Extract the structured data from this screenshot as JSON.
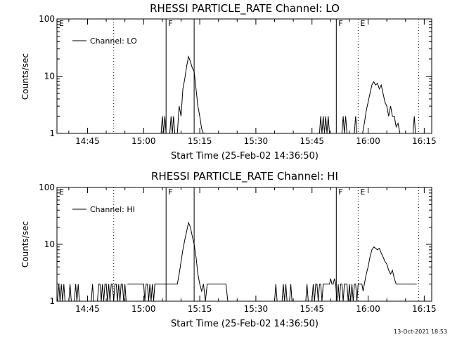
{
  "footer": {
    "timestamp": "13-Oct-2021 18:53"
  },
  "chart_data": [
    {
      "type": "line",
      "title": "RHESSI PARTICLE_RATE Channel: LO",
      "xlabel": "Start Time (25-Feb-02 14:36:50)",
      "ylabel": "Counts/sec",
      "yscale": "log",
      "xlim": [
        "14:36:50",
        "16:17:00"
      ],
      "ylim": [
        1,
        100
      ],
      "xticks": [
        "14:45",
        "15:00",
        "15:15",
        "15:30",
        "15:45",
        "16:00",
        "16:15"
      ],
      "yticks": [
        "1",
        "10",
        "100"
      ],
      "legend": {
        "position": "top-left",
        "entries": [
          "Channel: LO"
        ]
      },
      "markers": [
        {
          "time": "14:36:50",
          "label": "E",
          "style": "dotted"
        },
        {
          "time": "14:52:00",
          "label": "",
          "style": "dotted"
        },
        {
          "time": "15:06:00",
          "label": "F",
          "style": "solid"
        },
        {
          "time": "15:13:30",
          "label": "",
          "style": "solid"
        },
        {
          "time": "15:51:30",
          "label": "F",
          "style": "solid"
        },
        {
          "time": "15:57:20",
          "label": "E",
          "style": "dotted"
        },
        {
          "time": "16:13:30",
          "label": "",
          "style": "dotted"
        }
      ],
      "series": [
        {
          "name": "Channel: LO",
          "segments": [
            {
              "x": [
                "15:04:40",
                "15:05:00",
                "15:05:20",
                "15:05:40",
                "15:06:00"
              ],
              "y": [
                1,
                2,
                1,
                2,
                1
              ]
            },
            {
              "x": [
                "15:07:00",
                "15:07:20",
                "15:07:40",
                "15:08:00",
                "15:08:20"
              ],
              "y": [
                1,
                2,
                1,
                2,
                1
              ]
            },
            {
              "x": [
                "15:09:00",
                "15:09:30",
                "15:10:00",
                "15:10:30",
                "15:11:00",
                "15:11:30",
                "15:12:00",
                "15:12:30",
                "15:13:00",
                "15:13:30",
                "15:14:00",
                "15:14:30",
                "15:15:00",
                "15:15:30",
                "15:16:00"
              ],
              "y": [
                1,
                3,
                2,
                6,
                9,
                15,
                22,
                18,
                14,
                12,
                6,
                3,
                2,
                1.2,
                1
              ]
            },
            {
              "x": [
                "15:47:00",
                "15:47:20",
                "15:47:40",
                "15:48:00",
                "15:48:20",
                "15:48:40",
                "15:49:00",
                "15:49:20",
                "15:49:40"
              ],
              "y": [
                1,
                2,
                1,
                2,
                1,
                2,
                1,
                2,
                1
              ]
            },
            {
              "x": [
                "15:53:00",
                "15:53:20",
                "15:53:40",
                "15:54:00",
                "15:54:20"
              ],
              "y": [
                1,
                2,
                1,
                2,
                1
              ]
            },
            {
              "x": [
                "15:56:20",
                "15:56:40",
                "15:57:00"
              ],
              "y": [
                1,
                2,
                1
              ]
            },
            {
              "x": [
                "15:58:30",
                "15:59:00",
                "15:59:30",
                "16:00:00",
                "16:00:30",
                "16:01:00",
                "16:01:30",
                "16:02:00",
                "16:02:30",
                "16:03:00",
                "16:03:30",
                "16:04:00",
                "16:04:30",
                "16:05:00",
                "16:05:30",
                "16:06:00",
                "16:06:30",
                "16:07:00",
                "16:07:30",
                "16:08:00",
                "16:08:30"
              ],
              "y": [
                1,
                1.5,
                2.5,
                3.5,
                5,
                7,
                8,
                7,
                7.5,
                6,
                7,
                5,
                3.5,
                3,
                2,
                3,
                2,
                2,
                1.3,
                1.5,
                1
              ]
            },
            {
              "x": [
                "16:12:00",
                "16:12:20",
                "16:12:40"
              ],
              "y": [
                1,
                2,
                1
              ]
            }
          ]
        }
      ]
    },
    {
      "type": "line",
      "title": "RHESSI PARTICLE_RATE Channel: HI",
      "xlabel": "Start Time (25-Feb-02 14:36:50)",
      "ylabel": "Counts/sec",
      "yscale": "log",
      "xlim": [
        "14:36:50",
        "16:17:00"
      ],
      "ylim": [
        1,
        100
      ],
      "xticks": [
        "14:45",
        "15:00",
        "15:15",
        "15:30",
        "15:45",
        "16:00",
        "16:15"
      ],
      "yticks": [
        "1",
        "10",
        "100"
      ],
      "legend": {
        "position": "top-left",
        "entries": [
          "Channel: HI"
        ]
      },
      "markers": [
        {
          "time": "14:36:50",
          "label": "E",
          "style": "dotted"
        },
        {
          "time": "14:52:00",
          "label": "",
          "style": "dotted"
        },
        {
          "time": "15:06:00",
          "label": "F",
          "style": "solid"
        },
        {
          "time": "15:13:30",
          "label": "",
          "style": "solid"
        },
        {
          "time": "15:51:30",
          "label": "F",
          "style": "solid"
        },
        {
          "time": "15:57:20",
          "label": "E",
          "style": "dotted"
        },
        {
          "time": "16:13:30",
          "label": "",
          "style": "dotted"
        }
      ],
      "series": [
        {
          "name": "Channel: HI",
          "segments": [
            {
              "x": [
                "14:37:00",
                "14:37:20",
                "14:37:40",
                "14:38:00",
                "14:38:20",
                "14:38:40",
                "14:39:00"
              ],
              "y": [
                1,
                2,
                1,
                2,
                1,
                2,
                1
              ]
            },
            {
              "x": [
                "14:40:00",
                "14:40:20",
                "14:40:40"
              ],
              "y": [
                1,
                2,
                1
              ]
            },
            {
              "x": [
                "14:41:30",
                "14:41:50",
                "14:42:10",
                "14:42:30",
                "14:42:50"
              ],
              "y": [
                1,
                2,
                1,
                2,
                1
              ]
            },
            {
              "x": [
                "14:46:00",
                "14:46:20",
                "14:46:40"
              ],
              "y": [
                1,
                2,
                1
              ]
            },
            {
              "x": [
                "14:47:40",
                "14:48:00",
                "14:48:20",
                "14:48:40",
                "14:49:00",
                "14:49:20",
                "14:49:40",
                "14:50:00",
                "14:50:20",
                "14:50:40",
                "14:51:00",
                "14:51:20",
                "14:51:40",
                "14:52:00",
                "14:52:20",
                "14:52:40",
                "14:53:00",
                "14:53:20",
                "14:53:40",
                "14:54:00",
                "14:54:20",
                "14:54:40",
                "14:55:00",
                "14:55:20"
              ],
              "y": [
                1,
                2,
                2,
                1,
                2,
                1,
                2,
                2,
                1,
                2,
                1,
                2,
                2,
                1,
                2,
                2,
                1,
                2,
                1,
                2,
                2,
                1,
                2,
                1
              ]
            },
            {
              "x": [
                "14:55:40",
                "14:56:00",
                "15:00:00",
                "15:00:20",
                "15:00:40",
                "15:01:00",
                "15:01:20",
                "15:01:40",
                "15:02:00",
                "15:02:20",
                "15:02:40",
                "15:03:00",
                "15:06:00",
                "15:09:00",
                "15:09:30",
                "15:10:00",
                "15:10:30",
                "15:11:00",
                "15:11:30",
                "15:12:00",
                "15:12:30",
                "15:13:00",
                "15:13:30",
                "15:14:00",
                "15:14:30",
                "15:15:00",
                "15:15:30",
                "15:16:00",
                "15:16:30",
                "15:17:00",
                "15:20:00",
                "15:21:00",
                "15:22:00",
                "15:22:30"
              ],
              "y": [
                2,
                2,
                2,
                1,
                2,
                2,
                1,
                2,
                1,
                2,
                1,
                2,
                2,
                2,
                3,
                5,
                8,
                12,
                17,
                24,
                20,
                14,
                10,
                6,
                3,
                2,
                1.5,
                2,
                1,
                2,
                2,
                2,
                2,
                1
              ]
            },
            {
              "x": [
                "15:35:00",
                "15:35:20",
                "15:35:40"
              ],
              "y": [
                1,
                2,
                1
              ]
            },
            {
              "x": [
                "15:37:00",
                "15:37:20",
                "15:37:40",
                "15:38:00",
                "15:38:20"
              ],
              "y": [
                1,
                2,
                1,
                2,
                1
              ]
            },
            {
              "x": [
                "15:39:00",
                "15:39:20",
                "15:39:40"
              ],
              "y": [
                1,
                2,
                1
              ]
            },
            {
              "x": [
                "15:43:20",
                "15:43:40",
                "15:44:00"
              ],
              "y": [
                1,
                2,
                1
              ]
            },
            {
              "x": [
                "15:45:00",
                "15:45:20",
                "15:45:40",
                "15:46:00",
                "15:46:20",
                "15:46:40",
                "15:47:00",
                "15:47:20",
                "15:47:40",
                "15:48:00",
                "15:48:20",
                "15:48:40",
                "15:49:00",
                "15:49:20",
                "15:49:40",
                "15:50:00",
                "15:50:20",
                "15:50:40",
                "15:51:00",
                "15:51:20",
                "15:51:40",
                "15:52:00",
                "15:52:20",
                "15:52:40",
                "15:53:00",
                "15:53:20",
                "15:53:40",
                "15:54:00",
                "15:54:20",
                "15:54:40",
                "15:55:00",
                "15:55:20",
                "15:55:40",
                "15:56:00",
                "15:56:20",
                "15:56:40",
                "15:57:00",
                "15:57:20",
                "15:57:40",
                "15:58:00",
                "15:58:20",
                "15:58:40",
                "15:59:00"
              ],
              "y": [
                1,
                2,
                1,
                2,
                2,
                1,
                2,
                2,
                1,
                2,
                2,
                2,
                2,
                2,
                2,
                2.5,
                2,
                2,
                2.5,
                2,
                1,
                2,
                1,
                2,
                2,
                1,
                2,
                2,
                2,
                1,
                2,
                1,
                2,
                1,
                2,
                2,
                1,
                2,
                2,
                2,
                2,
                1.5,
                2
              ]
            },
            {
              "x": [
                "15:59:00",
                "15:59:30",
                "16:00:00",
                "16:00:30",
                "16:01:00",
                "16:01:30",
                "16:02:00",
                "16:02:30",
                "16:03:00",
                "16:03:30",
                "16:04:00",
                "16:04:30",
                "16:05:00",
                "16:05:30",
                "16:06:00",
                "16:06:30",
                "16:07:00",
                "16:07:30",
                "16:08:00",
                "16:13:00"
              ],
              "y": [
                2,
                3,
                4,
                6,
                8,
                9,
                8.5,
                8,
                8.5,
                7,
                6,
                5,
                4.5,
                3.5,
                3,
                3.5,
                2.5,
                2,
                2,
                2
              ]
            }
          ]
        }
      ]
    }
  ]
}
